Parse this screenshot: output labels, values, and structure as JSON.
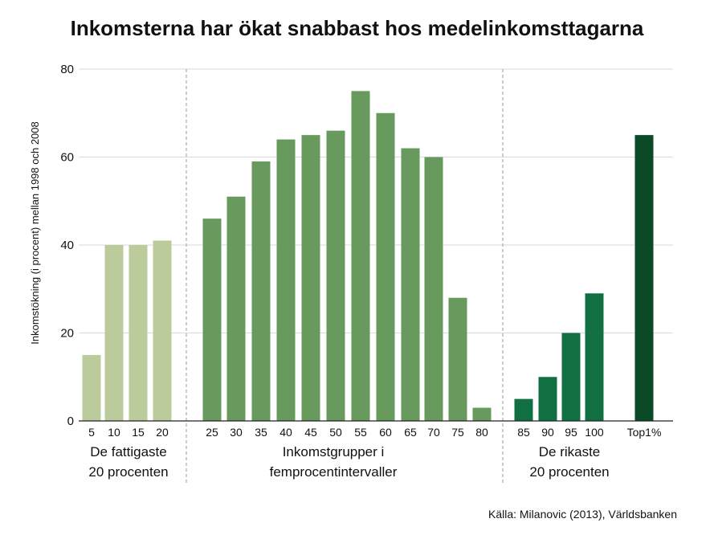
{
  "chart_data": {
    "type": "bar",
    "title": "Inkomsterna har ökat snabbast hos medelinkomsttagarna",
    "ylabel": "Inkomstökning (i procent) mellan 1998 och 2008",
    "xlabel": "",
    "ylim": [
      0,
      80
    ],
    "yticks": [
      "0",
      "20",
      "40",
      "60",
      "80"
    ],
    "grid": true,
    "categories": [
      "5",
      "10",
      "15",
      "20",
      "25",
      "30",
      "35",
      "40",
      "45",
      "50",
      "55",
      "60",
      "65",
      "70",
      "75",
      "80",
      "85",
      "90",
      "95",
      "100",
      "Top1%"
    ],
    "values": [
      15,
      40,
      40,
      41,
      46,
      51,
      59,
      64,
      65,
      66,
      75,
      70,
      62,
      60,
      28,
      3,
      5,
      10,
      20,
      29,
      65
    ],
    "groups": [
      {
        "name": "poorest",
        "line1": "De fattigaste",
        "line2": "20 procenten",
        "color": "#bccb9b"
      },
      {
        "name": "middle",
        "line1": "Inkomstgrupper i",
        "line2": "femprocentintervaller",
        "color": "#689a5e"
      },
      {
        "name": "richest",
        "line1": "De rikaste",
        "line2": "20 procenten",
        "color": "#107041"
      },
      {
        "name": "top",
        "line1": "",
        "line2": "",
        "color": "#0a4a27"
      }
    ],
    "bar_group": [
      0,
      0,
      0,
      0,
      1,
      1,
      1,
      1,
      1,
      1,
      1,
      1,
      1,
      1,
      1,
      1,
      2,
      2,
      2,
      2,
      3
    ]
  },
  "source": "Källa: Milanovic (2013), Världsbanken"
}
